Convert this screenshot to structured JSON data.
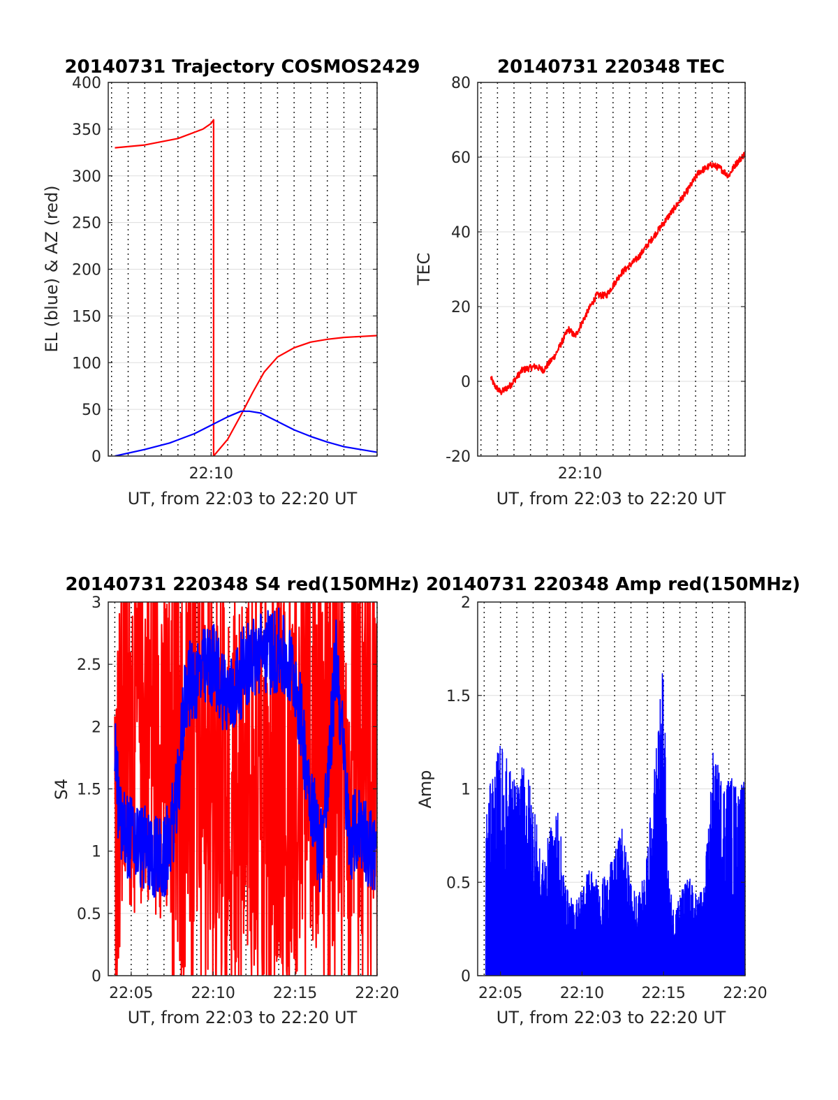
{
  "chart_data": [
    {
      "type": "line",
      "title": "20140731 Trajectory COSMOS2429",
      "xlabel": "UT, from 22:03 to 22:20 UT",
      "ylabel": "EL (blue) & AZ (red)",
      "xlim": [
        3.8,
        20.0
      ],
      "ylim": [
        0,
        400
      ],
      "yticks": [
        0,
        50,
        100,
        150,
        200,
        250,
        300,
        350,
        400
      ],
      "xticks": [
        {
          "value": 10,
          "label": "22:10"
        }
      ],
      "grid": true,
      "series": [
        {
          "color": "#ff0000",
          "noise": 0,
          "x": [
            4.2,
            6.0,
            8.0,
            9.5,
            10.0,
            10.15,
            10.15,
            11.0,
            11.8,
            12.5,
            13.2,
            14.0,
            15.0,
            16.0,
            17.0,
            18.0,
            19.0,
            20.0
          ],
          "y": [
            330,
            333,
            340,
            350,
            356,
            360,
            0,
            18,
            44,
            68,
            90,
            106,
            116,
            122,
            125,
            127,
            128,
            129
          ]
        },
        {
          "color": "#0000ff",
          "noise": 0,
          "x": [
            4.2,
            6.0,
            7.5,
            9.0,
            10.0,
            11.0,
            11.8,
            12.3,
            13.0,
            14.0,
            15.0,
            16.0,
            17.0,
            18.0,
            19.0,
            20.0
          ],
          "y": [
            0,
            7,
            14,
            24,
            33,
            42,
            48,
            48,
            46,
            37,
            28,
            21,
            15,
            10,
            7,
            4
          ]
        }
      ]
    },
    {
      "type": "line",
      "title": "20140731 220348 TEC",
      "xlabel": "UT, from 22:03 to 22:20 UT",
      "ylabel": "TEC",
      "xlim": [
        3.8,
        20.0
      ],
      "ylim": [
        -20,
        80
      ],
      "yticks": [
        -20,
        0,
        20,
        40,
        60,
        80
      ],
      "xticks": [
        {
          "value": 10,
          "label": "22:10"
        }
      ],
      "grid": true,
      "series": [
        {
          "color": "#ff0000",
          "noise": 0.9,
          "x": [
            4.6,
            4.8,
            5.2,
            5.8,
            6.5,
            7.3,
            7.8,
            8.5,
            9.3,
            9.7,
            10.5,
            11.0,
            11.6,
            12.5,
            13.5,
            14.5,
            15.5,
            16.5,
            17.2,
            18.0,
            18.5,
            19.0,
            19.4,
            20.0
          ],
          "y": [
            1,
            -1,
            -3,
            -1,
            3,
            4,
            3,
            7,
            14,
            12,
            19,
            23,
            23,
            29,
            33,
            39,
            45,
            51,
            56,
            58,
            57,
            55,
            58,
            61
          ]
        }
      ]
    },
    {
      "type": "line",
      "title": "20140731 220348 S4 red(150MHz)",
      "xlabel": "UT, from 22:03 to 22:20 UT",
      "ylabel": "S4",
      "xlim": [
        3.6,
        20.0
      ],
      "ylim": [
        0,
        3
      ],
      "yticks": [
        0,
        0.5,
        1,
        1.5,
        2,
        2.5,
        3
      ],
      "xticks": [
        {
          "value": 5,
          "label": "22:05"
        },
        {
          "value": 10,
          "label": "22:10"
        },
        {
          "value": 15,
          "label": "22:15"
        },
        {
          "value": 20,
          "label": "22:20"
        }
      ],
      "grid": true,
      "series": [
        {
          "color": "#ff0000",
          "noise": 1.0,
          "x": [
            4.0,
            4.5,
            5.0,
            5.5,
            6.0,
            6.5,
            7.0,
            7.5,
            8.0,
            9.0,
            10.0,
            11.0,
            12.0,
            13.0,
            14.0,
            15.0,
            16.0,
            17.0,
            18.0,
            19.0,
            20.0
          ],
          "y": [
            1.3,
            1.8,
            2.1,
            2.0,
            2.2,
            2.0,
            2.1,
            1.8,
            1.6,
            1.7,
            1.6,
            1.4,
            1.6,
            1.5,
            1.5,
            1.6,
            1.7,
            1.8,
            1.7,
            1.9,
            1.9
          ]
        },
        {
          "color": "#0000ff",
          "noise": 0.35,
          "x": [
            4.0,
            4.3,
            5.0,
            6.0,
            7.0,
            7.8,
            8.3,
            9.0,
            10.0,
            11.0,
            12.0,
            13.0,
            14.0,
            15.0,
            15.8,
            16.5,
            17.0,
            17.5,
            18.3,
            19.0,
            20.0
          ],
          "y": [
            1.9,
            1.2,
            1.1,
            1.0,
            0.9,
            1.4,
            2.3,
            2.4,
            2.5,
            2.2,
            2.5,
            2.6,
            2.6,
            2.4,
            1.6,
            1.0,
            1.5,
            2.6,
            1.1,
            1.2,
            0.9
          ]
        }
      ]
    },
    {
      "type": "line",
      "title": "20140731 220348 Amp red(150MHz)",
      "xlabel": "UT, from 22:03 to 22:20 UT",
      "ylabel": "Amp",
      "xlim": [
        3.6,
        20.0
      ],
      "ylim": [
        0,
        2
      ],
      "yticks": [
        0,
        0.5,
        1,
        1.5,
        2
      ],
      "xticks": [
        {
          "value": 5,
          "label": "22:05"
        },
        {
          "value": 10,
          "label": "22:10"
        },
        {
          "value": 15,
          "label": "22:15"
        },
        {
          "value": 20,
          "label": "22:20"
        }
      ],
      "grid": true,
      "series": [
        {
          "color": "#0000ff",
          "noise": 0,
          "type": "spikes",
          "x": [
            4.1,
            4.5,
            5.0,
            5.5,
            6.0,
            6.5,
            7.0,
            7.5,
            8.0,
            8.5,
            9.0,
            9.5,
            10.0,
            10.5,
            11.0,
            11.5,
            12.0,
            12.5,
            13.0,
            13.5,
            14.0,
            14.5,
            15.0,
            15.3,
            15.6,
            16.0,
            16.5,
            17.0,
            17.5,
            18.0,
            18.5,
            19.0,
            19.5,
            20.0
          ],
          "y": [
            0.8,
            1.0,
            1.15,
            1.05,
            0.95,
            1.05,
            0.9,
            0.55,
            0.7,
            0.85,
            0.45,
            0.35,
            0.45,
            0.55,
            0.45,
            0.5,
            0.6,
            0.75,
            0.45,
            0.4,
            0.6,
            1.1,
            1.55,
            0.5,
            0.35,
            0.4,
            0.5,
            0.4,
            0.45,
            1.1,
            1.0,
            1.0,
            0.95,
            0.95
          ]
        }
      ]
    }
  ]
}
